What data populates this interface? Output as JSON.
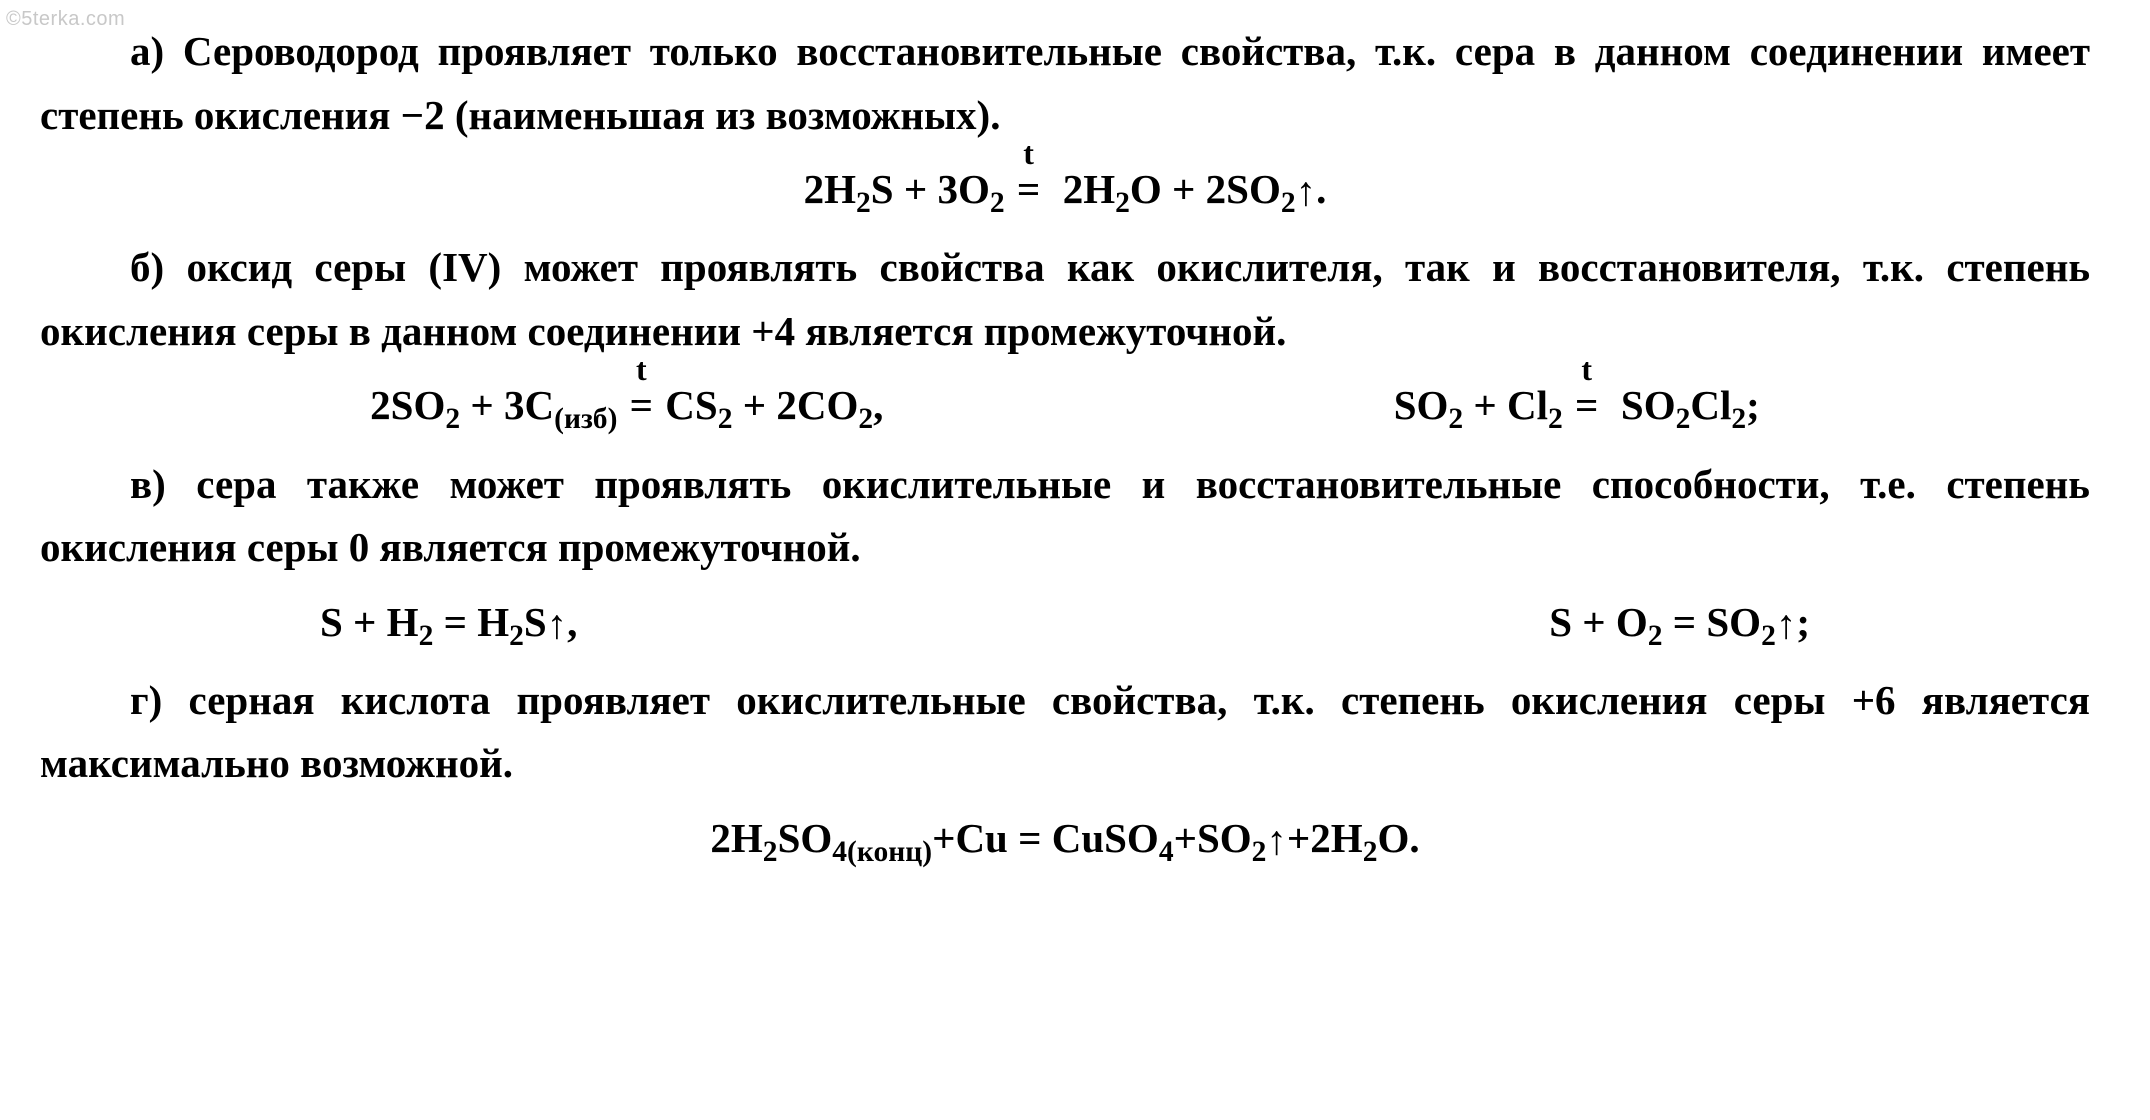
{
  "meta": {
    "watermark": "©5terka.com",
    "background_color": "#ffffff",
    "text_color": "#000000",
    "watermark_color": "#c8c8c8",
    "font_family": "Times New Roman",
    "font_size_pt": 30,
    "font_weight": "bold"
  },
  "sections": {
    "a": {
      "text": "а) Сероводород проявляет только восстановительные свойства, т.к. сера в данном соединении имеет степень окисления −2 (наименьшая из возможных).",
      "equation": {
        "lhs": "2H₂S + 3O₂",
        "condition": "t",
        "rhs": "2H₂O + 2SO₂↑",
        "terminator": "."
      }
    },
    "b": {
      "text": "б) оксид серы (IV) может проявлять свойства как окислителя, так и восстановителя, т.к. степень окисления серы в данном соединении +4 является промежуточной.",
      "equations": [
        {
          "lhs": "2SO₂ + 3C(изб)",
          "condition": "t",
          "rhs": "CS₂ + 2CO₂",
          "terminator": ","
        },
        {
          "lhs": "SO₂ + Cl₂",
          "condition": "t",
          "rhs": "SO₂Cl₂",
          "terminator": ";"
        }
      ]
    },
    "c": {
      "text": "в) сера также может проявлять окислительные и восстановительные способности, т.е. степень окисления серы 0 является промежуточной.",
      "equations": [
        {
          "text": "S + H₂ = H₂S↑",
          "terminator": ","
        },
        {
          "text": "S + O₂ = SO₂↑",
          "terminator": ";"
        }
      ]
    },
    "d": {
      "text": "г) серная кислота проявляет окислительные свойства, т.к. степень окисления серы +6 является максимально возможной.",
      "equation": {
        "text": "2H₂SO₄(конц) + Cu = CuSO₄ + SO₂↑ + 2H₂O",
        "terminator": "."
      }
    }
  }
}
